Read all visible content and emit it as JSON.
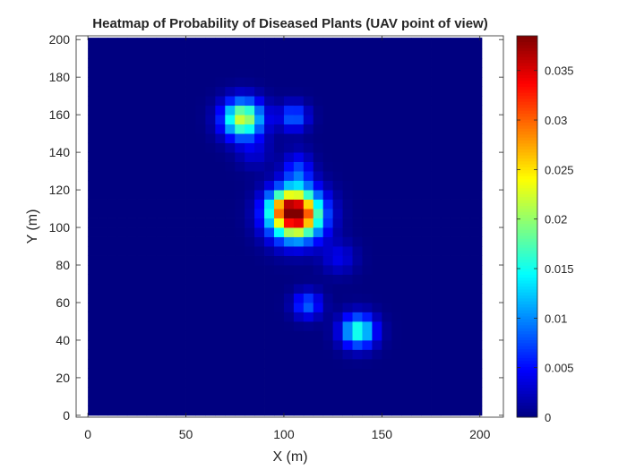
{
  "chart_data": {
    "type": "heatmap",
    "title": "Heatmap of Probability of Diseased Plants (UAV point of view)",
    "xlabel": "X (m)",
    "ylabel": "Y (m)",
    "xlim": [
      -6,
      212
    ],
    "ylim": [
      -1,
      202
    ],
    "data_extent": {
      "x": [
        0,
        201
      ],
      "y": [
        0,
        201
      ]
    },
    "grid_resolution_m": 5,
    "xticks": [
      0,
      50,
      100,
      150,
      200
    ],
    "yticks": [
      0,
      20,
      40,
      60,
      80,
      100,
      120,
      140,
      160,
      180,
      200
    ],
    "xtick_labels": [
      "0",
      "50",
      "100",
      "150",
      "200"
    ],
    "ytick_labels": [
      "0",
      "20",
      "40",
      "60",
      "80",
      "100",
      "120",
      "140",
      "160",
      "180",
      "200"
    ],
    "colormap": "jet",
    "colorbar": {
      "limits": [
        0,
        0.0385
      ],
      "ticks": [
        0,
        0.005,
        0.01,
        0.015,
        0.02,
        0.025,
        0.03,
        0.035
      ],
      "tick_labels": [
        "0",
        "0.005",
        "0.01",
        "0.015",
        "0.02",
        "0.025",
        "0.03",
        "0.035"
      ]
    },
    "hotspots": [
      {
        "x": 106,
        "y": 107,
        "sx": 9,
        "sy": 9,
        "peak": 0.0385
      },
      {
        "x": 100,
        "y": 112,
        "sx": 6,
        "sy": 6,
        "peak": 0.007
      },
      {
        "x": 79,
        "y": 158,
        "sx": 7,
        "sy": 7,
        "peak": 0.0225
      },
      {
        "x": 105,
        "y": 159,
        "sx": 5,
        "sy": 5,
        "peak": 0.009
      },
      {
        "x": 138,
        "y": 45,
        "sx": 6,
        "sy": 6,
        "peak": 0.0165
      },
      {
        "x": 112,
        "y": 59,
        "sx": 5,
        "sy": 5,
        "peak": 0.0085
      },
      {
        "x": 107,
        "y": 130,
        "sx": 5,
        "sy": 7,
        "peak": 0.007
      },
      {
        "x": 128,
        "y": 84,
        "sx": 6,
        "sy": 6,
        "peak": 0.004
      },
      {
        "x": 85,
        "y": 140,
        "sx": 6,
        "sy": 6,
        "peak": 0.003
      }
    ]
  }
}
